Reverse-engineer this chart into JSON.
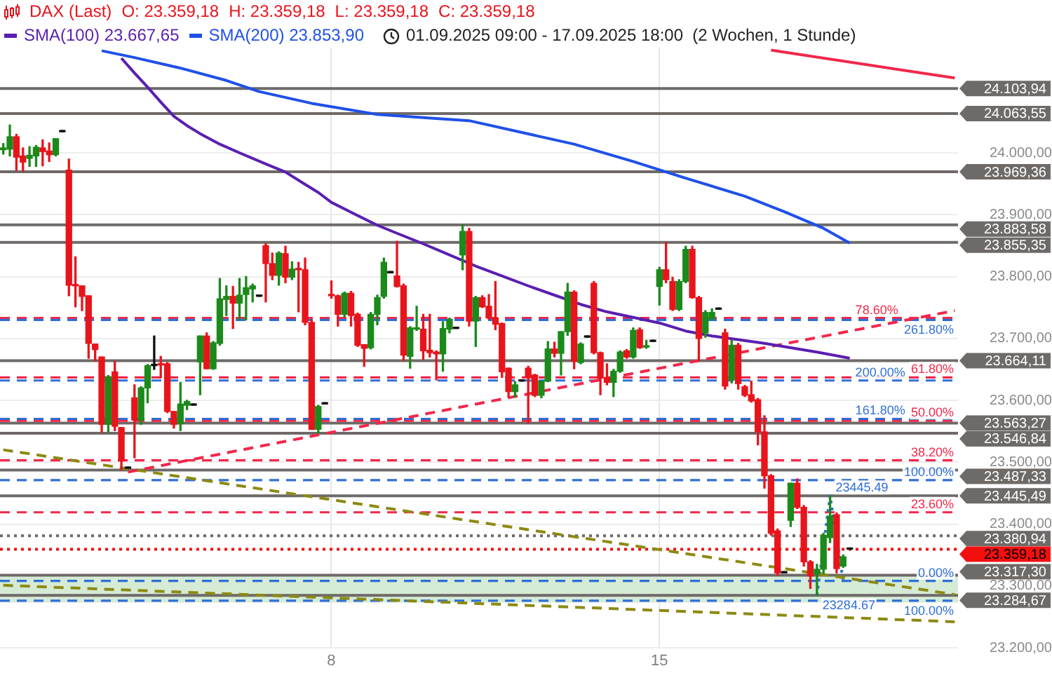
{
  "chart_data": {
    "type": "candlestick",
    "title": "DAX (Last)",
    "subtitle": "01.09.2025 09:00 - 17.09.2025 18:00  (2 Wochen, 1 Stunde)",
    "annotations": [
      "O: 23.359,18",
      "H: 23.359,18",
      "L: 23.359,18",
      "C: 23.359,18",
      {
        "text": "78.60%",
        "y": 23733
      },
      {
        "text": "61.80%",
        "y": 23637
      },
      {
        "text": "50.00%",
        "y": 23567
      },
      {
        "text": "38.20%",
        "y": 23503
      },
      {
        "text": "23.60%",
        "y": 23419
      },
      {
        "text": "261.80%",
        "y": 23730
      },
      {
        "text": "200.00%",
        "y": 23632
      },
      {
        "text": "161.80%",
        "y": 23570
      },
      {
        "text": "100.00%",
        "y": 23471
      },
      {
        "text": "0.00%",
        "y": 23308
      },
      {
        "text": "100.00%",
        "y": 23276
      }
    ],
    "categories": [
      null,
      null,
      null,
      null,
      null,
      null,
      null,
      null,
      null,
      null,
      null,
      null,
      null,
      null,
      null,
      null,
      null,
      null,
      null,
      null,
      null,
      null,
      null,
      null,
      null,
      null,
      null,
      null,
      null,
      null,
      null,
      null,
      null,
      null,
      null,
      null,
      null,
      null,
      null,
      null,
      null,
      null,
      null,
      null,
      null,
      null,
      null,
      null,
      null,
      null,
      "8",
      null,
      null,
      null,
      null,
      null,
      null,
      null,
      null,
      null,
      null,
      null,
      null,
      null,
      null,
      null,
      null,
      null,
      null,
      null,
      null,
      null,
      null,
      null,
      null,
      null,
      null,
      null,
      null,
      null,
      null,
      null,
      null,
      null,
      null,
      null,
      null,
      null,
      null,
      null,
      null,
      null,
      null,
      null,
      null,
      null,
      null,
      null,
      null,
      null,
      "15",
      null,
      null,
      null,
      null,
      null,
      null,
      null,
      null,
      null,
      null,
      null,
      null,
      null,
      null,
      null,
      null,
      null,
      null,
      null,
      null,
      null,
      null,
      null,
      null,
      null,
      null,
      null,
      null,
      null,
      null,
      null,
      null,
      null,
      null,
      null,
      null,
      null,
      null,
      null,
      null,
      null,
      null,
      null,
      null,
      null
    ],
    "ohlc": [
      [
        24005,
        24015,
        23998,
        24008
      ],
      [
        24006,
        24045,
        23995,
        24026
      ],
      [
        24026,
        24030,
        23972,
        23993
      ],
      [
        23995,
        24008,
        23970,
        23985
      ],
      [
        23991,
        24010,
        23978,
        23996
      ],
      [
        23995,
        24012,
        23978,
        24009
      ],
      [
        24008,
        24021,
        23979,
        24002
      ],
      [
        24003,
        24016,
        23986,
        23997
      ],
      [
        23997,
        24023,
        23995,
        24023
      ],
      [
        24034,
        24034,
        24034,
        24034
      ],
      [
        23972,
        23990,
        23769,
        23786
      ],
      [
        23787,
        23832,
        23751,
        23785
      ],
      [
        23785,
        23785,
        23745,
        23768
      ],
      [
        23769,
        23769,
        23668,
        23692
      ],
      [
        23691,
        23691,
        23664,
        23682
      ],
      [
        23670,
        23670,
        23548,
        23561
      ],
      [
        23561,
        23640,
        23549,
        23638
      ],
      [
        23646,
        23663,
        23551,
        23558
      ],
      [
        23556,
        23556,
        23487.33,
        23502
      ],
      [
        23490,
        23490,
        23490,
        23490
      ],
      [
        23604,
        23625,
        23507,
        23568
      ],
      [
        23568,
        23622,
        23561,
        23620
      ],
      [
        23620,
        23658,
        23596,
        23656
      ],
      [
        23656,
        23704,
        23650,
        23656
      ],
      [
        23658,
        23671,
        23637,
        23657
      ],
      [
        23659,
        23661,
        23580,
        23582
      ],
      [
        23582,
        23582,
        23555,
        23561
      ],
      [
        23562,
        23629,
        23551,
        23594
      ],
      [
        23592,
        23600,
        23585,
        23598
      ],
      [
        23592,
        23592,
        23592,
        23592
      ],
      [
        23662,
        23704,
        23609,
        23704
      ],
      [
        23704,
        23709,
        23651,
        23651
      ],
      [
        23651,
        23695,
        23650,
        23693
      ],
      [
        23692,
        23797,
        23689,
        23764
      ],
      [
        23763,
        23785,
        23737,
        23768
      ],
      [
        23768,
        23784,
        23716,
        23757
      ],
      [
        23757,
        23797,
        23730,
        23770
      ],
      [
        23771,
        23800,
        23730,
        23782
      ],
      [
        23780,
        23788,
        23759,
        23785
      ],
      [
        23768,
        23768,
        23768,
        23768
      ],
      [
        23850,
        23853,
        23759,
        23821
      ],
      [
        23821,
        23838,
        23795,
        23802
      ],
      [
        23802,
        23840,
        23786,
        23838
      ],
      [
        23837,
        23849,
        23790,
        23799
      ],
      [
        23799,
        23824,
        23795,
        23812
      ],
      [
        23812,
        23823,
        23743,
        23811
      ],
      [
        23811,
        23830,
        23722,
        23726
      ],
      [
        23726,
        23730,
        23553,
        23553
      ],
      [
        23553,
        23592,
        23546.84,
        23590
      ],
      [
        23594,
        23594,
        23594,
        23594
      ],
      [
        23770,
        23793,
        23765,
        23769
      ],
      [
        23769,
        23770,
        23720,
        23739
      ],
      [
        23739,
        23775,
        23735,
        23773
      ],
      [
        23773,
        23776,
        23720,
        23737
      ],
      [
        23739,
        23741,
        23687,
        23689
      ],
      [
        23690,
        23690,
        23655,
        23684
      ],
      [
        23685,
        23742,
        23683,
        23739
      ],
      [
        23739,
        23770,
        23722,
        23766
      ],
      [
        23768,
        23830,
        23765,
        23823
      ],
      [
        23806,
        23806,
        23806,
        23806
      ],
      [
        23801,
        23857,
        23783,
        23784
      ],
      [
        23785,
        23788,
        23664,
        23673
      ],
      [
        23671,
        23719,
        23652,
        23717
      ],
      [
        23715,
        23752,
        23713,
        23716
      ],
      [
        23715,
        23739,
        23666,
        23680
      ],
      [
        23681,
        23739,
        23670,
        23677
      ],
      [
        23678,
        23680,
        23633,
        23675
      ],
      [
        23675,
        23727,
        23647,
        23716
      ],
      [
        23715,
        23733,
        23709,
        23731
      ],
      [
        23716,
        23716,
        23716,
        23716
      ],
      [
        23835,
        23883.58,
        23811,
        23873
      ],
      [
        23873,
        23878,
        23720,
        23728
      ],
      [
        23728,
        23768,
        23687,
        23766
      ],
      [
        23766,
        23769,
        23750,
        23751
      ],
      [
        23752,
        23771,
        23731,
        23733
      ],
      [
        23733,
        23792,
        23714,
        23723
      ],
      [
        23724,
        23725,
        23637,
        23646
      ],
      [
        23652,
        23652,
        23605,
        23614
      ],
      [
        23614,
        23630,
        23605,
        23625
      ],
      [
        23631,
        23631,
        23631,
        23631
      ],
      [
        23652,
        23655,
        23563.27,
        23638
      ],
      [
        23641,
        23642,
        23606,
        23608
      ],
      [
        23608,
        23631,
        23604,
        23631
      ],
      [
        23631,
        23695,
        23630,
        23683
      ],
      [
        23683,
        23694,
        23670,
        23676
      ],
      [
        23676,
        23711,
        23641,
        23711
      ],
      [
        23711,
        23789,
        23705,
        23775
      ],
      [
        23775,
        23777,
        23651,
        23663
      ],
      [
        23661,
        23693,
        23659,
        23691
      ],
      [
        23702,
        23702,
        23702,
        23702
      ],
      [
        23789,
        23792,
        23675,
        23677
      ],
      [
        23677,
        23678,
        23609,
        23636
      ],
      [
        23637,
        23659,
        23625,
        23629
      ],
      [
        23629,
        23650,
        23606,
        23647
      ],
      [
        23647,
        23680,
        23645,
        23678
      ],
      [
        23680,
        23682,
        23668,
        23670
      ],
      [
        23670,
        23717,
        23668,
        23713
      ],
      [
        23714,
        23717,
        23684,
        23685
      ],
      [
        23686,
        23697,
        23684,
        23687
      ],
      [
        23695,
        23695,
        23695,
        23695
      ],
      [
        23784,
        23815,
        23754,
        23811
      ],
      [
        23811,
        23855.35,
        23790,
        23795
      ],
      [
        23792,
        23799,
        23745,
        23747
      ],
      [
        23747,
        23795,
        23745,
        23792
      ],
      [
        23792,
        23849,
        23790,
        23844
      ],
      [
        23844,
        23849,
        23765,
        23766
      ],
      [
        23766,
        23768,
        23664.11,
        23700
      ],
      [
        23709,
        23745,
        23702,
        23742
      ],
      [
        23732,
        23748,
        23730,
        23742
      ],
      [
        23747,
        23747,
        23747,
        23747
      ],
      [
        23709,
        23715,
        23618,
        23623
      ],
      [
        23633,
        23697,
        23628,
        23689
      ],
      [
        23689,
        23692,
        23618,
        23627
      ],
      [
        23622,
        23624,
        23606,
        23608
      ],
      [
        23609,
        23631,
        23597,
        23599
      ],
      [
        23601,
        23603,
        23528,
        23549
      ],
      [
        23549,
        23575,
        23458,
        23478
      ],
      [
        23478,
        23480,
        23382,
        23385
      ],
      [
        23389,
        23392,
        23317.3,
        23321
      ],
      [
        23321,
        23321,
        23321,
        23321
      ],
      [
        23406,
        23466,
        23396,
        23466
      ],
      [
        23466,
        23473,
        23425,
        23427
      ],
      [
        23427,
        23430,
        23332,
        23339
      ],
      [
        23339,
        23341,
        23296,
        23316
      ],
      [
        23319,
        23335,
        23284.67,
        23327
      ],
      [
        23327,
        23385,
        23320,
        23382
      ],
      [
        23378,
        23445.49,
        23370,
        23413
      ],
      [
        23415,
        23418,
        23321,
        23328
      ],
      [
        23332,
        23350,
        23330,
        23347
      ],
      [
        23359.18,
        23359.18,
        23359.18,
        23359.18
      ],
      null,
      null,
      null,
      null,
      null,
      null,
      null,
      null,
      null,
      null,
      null,
      null,
      null,
      null,
      null,
      null
    ],
    "colors": [
      "#1b8a1b",
      "#1b8a1b",
      "#e8141c",
      "#e8141c",
      "#1b8a1b",
      "#1b8a1b",
      "#e8141c",
      "#e8141c",
      "#1b8a1b",
      "#111111",
      "#e8141c",
      "#e8141c",
      "#e8141c",
      "#e8141c",
      "#e8141c",
      "#e8141c",
      "#1b8a1b",
      "#e8141c",
      "#e8141c",
      "#111111",
      "#e8141c",
      "#1b8a1b",
      "#1b8a1b",
      "#111111",
      "#e8141c",
      "#e8141c",
      "#e8141c",
      "#1b8a1b",
      "#1b8a1b",
      "#111111",
      "#1b8a1b",
      "#e8141c",
      "#1b8a1b",
      "#1b8a1b",
      "#1b8a1b",
      "#e8141c",
      "#1b8a1b",
      "#1b8a1b",
      "#1b8a1b",
      "#111111",
      "#e8141c",
      "#e8141c",
      "#1b8a1b",
      "#e8141c",
      "#1b8a1b",
      "#e8141c",
      "#e8141c",
      "#e8141c",
      "#1b8a1b",
      "#111111",
      "#e8141c",
      "#e8141c",
      "#1b8a1b",
      "#e8141c",
      "#e8141c",
      "#e8141c",
      "#1b8a1b",
      "#1b8a1b",
      "#1b8a1b",
      "#111111",
      "#e8141c",
      "#e8141c",
      "#1b8a1b",
      "#1b8a1b",
      "#e8141c",
      "#e8141c",
      "#e8141c",
      "#1b8a1b",
      "#1b8a1b",
      "#111111",
      "#1b8a1b",
      "#e8141c",
      "#1b8a1b",
      "#e8141c",
      "#e8141c",
      "#e8141c",
      "#e8141c",
      "#e8141c",
      "#1b8a1b",
      "#111111",
      "#e8141c",
      "#e8141c",
      "#1b8a1b",
      "#1b8a1b",
      "#e8141c",
      "#1b8a1b",
      "#1b8a1b",
      "#e8141c",
      "#1b8a1b",
      "#111111",
      "#e8141c",
      "#e8141c",
      "#e8141c",
      "#1b8a1b",
      "#1b8a1b",
      "#e8141c",
      "#1b8a1b",
      "#e8141c",
      "#1b8a1b",
      "#111111",
      "#1b8a1b",
      "#e8141c",
      "#e8141c",
      "#1b8a1b",
      "#1b8a1b",
      "#e8141c",
      "#e8141c",
      "#1b8a1b",
      "#1b8a1b",
      "#111111",
      "#e8141c",
      "#1b8a1b",
      "#e8141c",
      "#e8141c",
      "#e8141c",
      "#e8141c",
      "#e8141c",
      "#e8141c",
      "#e8141c",
      "#111111",
      "#1b8a1b",
      "#e8141c",
      "#e8141c",
      "#e8141c",
      "#1b8a1b",
      "#1b8a1b",
      "#1b8a1b",
      "#e8141c",
      "#1b8a1b",
      "#111111",
      null,
      null,
      null,
      null,
      null,
      null,
      null,
      null,
      null,
      null,
      null,
      null,
      null,
      null,
      null,
      null
    ],
    "series": [
      {
        "type": "line",
        "name": "SMA(100) 23.667,65",
        "color": "#5a1fb0",
        "values": [
          null,
          null,
          null,
          null,
          null,
          null,
          null,
          null,
          null,
          null,
          null,
          null,
          null,
          null,
          null,
          null,
          null,
          null,
          24153,
          null,
          24129,
          null,
          24106,
          null,
          24082,
          null,
          24059,
          null,
          24044,
          null,
          24031,
          null,
          null,
          24014,
          null,
          null,
          24000,
          null,
          null,
          null,
          23982,
          null,
          null,
          23969,
          null,
          null,
          23949,
          null,
          23936,
          null,
          23920,
          null,
          null,
          23904,
          null,
          null,
          null,
          23883,
          null,
          null,
          23870,
          null,
          null,
          null,
          23853,
          null,
          null,
          null,
          23835,
          null,
          null,
          null,
          23817,
          null,
          null,
          null,
          23801,
          null,
          null,
          null,
          23785,
          null,
          null,
          null,
          23770,
          null,
          null,
          null,
          23755,
          null,
          null,
          null,
          23743,
          null,
          null,
          null,
          23734,
          null,
          null,
          null,
          23725,
          null,
          null,
          null,
          23712,
          null,
          null,
          null,
          23704,
          null,
          null,
          null,
          23698,
          null,
          null,
          null,
          23692,
          null,
          null,
          null,
          23685,
          null,
          null,
          null,
          23678,
          null,
          null,
          null,
          null,
          23668,
          null,
          null,
          null,
          null,
          null,
          null,
          null,
          null,
          null,
          null,
          null,
          null,
          null,
          null,
          null,
          null
        ]
      },
      {
        "type": "line",
        "name": "SMA(200) 23.853,90",
        "color": "#1f50e8",
        "values": [
          null,
          null,
          null,
          null,
          null,
          null,
          null,
          null,
          null,
          null,
          null,
          null,
          null,
          null,
          null,
          24165,
          null,
          null,
          null,
          null,
          24154,
          null,
          null,
          null,
          null,
          null,
          null,
          24137,
          null,
          null,
          null,
          null,
          null,
          null,
          24117,
          null,
          null,
          null,
          null,
          24099,
          null,
          null,
          null,
          null,
          null,
          null,
          null,
          24080,
          null,
          null,
          null,
          null,
          null,
          null,
          null,
          null,
          null,
          24062,
          null,
          null,
          null,
          null,
          null,
          null,
          null,
          null,
          null,
          null,
          null,
          null,
          null,
          24052,
          null,
          null,
          null,
          null,
          null,
          null,
          null,
          null,
          null,
          null,
          null,
          null,
          null,
          null,
          null,
          24014,
          null,
          null,
          null,
          null,
          null,
          null,
          null,
          null,
          23986,
          null,
          null,
          null,
          null,
          null,
          null,
          null,
          23959,
          null,
          null,
          null,
          null,
          null,
          null,
          null,
          null,
          23930,
          null,
          null,
          null,
          null,
          null,
          23905,
          null,
          null,
          null,
          null,
          null,
          23878,
          null,
          null,
          null,
          23854,
          null,
          null,
          null,
          null,
          null,
          null,
          null,
          null,
          null,
          null,
          null,
          null,
          null,
          null,
          null,
          null
        ]
      },
      {
        "type": "line",
        "color": "#f2274a",
        "line_style": "dashed",
        "values": [
          null,
          null,
          null,
          null,
          null,
          null,
          null,
          null,
          null,
          null,
          null,
          null,
          null,
          null,
          null,
          null,
          null,
          null,
          null,
          23484,
          null,
          null,
          null,
          null,
          null,
          null,
          null,
          null,
          null,
          null,
          null,
          null,
          null,
          null,
          null,
          null,
          null,
          null,
          null,
          null,
          null,
          null,
          null,
          null,
          null,
          null,
          null,
          null,
          null,
          null,
          null,
          null,
          null,
          null,
          null,
          null,
          null,
          null,
          null,
          null,
          null,
          null,
          null,
          null,
          null,
          null,
          null,
          null,
          null,
          null,
          null,
          null,
          null,
          null,
          null,
          null,
          null,
          null,
          null,
          null,
          null,
          null,
          null,
          null,
          null,
          null,
          null,
          null,
          null,
          null,
          null,
          null,
          null,
          null,
          null,
          null,
          null,
          null,
          null,
          null,
          null,
          null,
          null,
          null,
          null,
          null,
          null,
          null,
          null,
          null,
          null,
          null,
          null,
          null,
          null,
          null,
          null,
          null,
          null,
          null,
          null,
          null,
          null,
          null,
          null,
          null,
          null,
          null,
          null,
          null,
          null,
          null,
          null,
          null,
          null,
          null,
          null,
          null,
          null,
          null,
          null,
          null,
          null,
          null,
          null,
          23745
        ]
      },
      {
        "type": "line",
        "color": "#8c8a12",
        "line_style": "dashed",
        "values": [
          23520,
          null,
          null,
          null,
          null,
          null,
          null,
          null,
          null,
          null,
          null,
          null,
          null,
          null,
          null,
          null,
          null,
          null,
          null,
          null,
          null,
          null,
          null,
          null,
          null,
          null,
          null,
          null,
          null,
          null,
          null,
          null,
          null,
          null,
          null,
          null,
          null,
          null,
          null,
          null,
          null,
          null,
          null,
          null,
          null,
          null,
          null,
          null,
          null,
          null,
          null,
          null,
          null,
          null,
          null,
          null,
          null,
          null,
          null,
          null,
          null,
          null,
          null,
          null,
          null,
          null,
          null,
          null,
          null,
          null,
          null,
          null,
          null,
          null,
          null,
          null,
          null,
          null,
          null,
          null,
          null,
          null,
          null,
          null,
          null,
          null,
          null,
          null,
          null,
          null,
          null,
          null,
          null,
          null,
          null,
          null,
          null,
          null,
          null,
          null,
          null,
          null,
          null,
          null,
          null,
          null,
          null,
          null,
          null,
          null,
          null,
          null,
          null,
          null,
          null,
          null,
          null,
          null,
          null,
          null,
          null,
          null,
          null,
          null,
          null,
          null,
          null,
          null,
          null,
          null,
          null,
          null,
          null,
          null,
          null,
          null,
          null,
          null,
          null,
          null,
          null,
          null,
          null,
          null,
          null,
          23286
        ]
      },
      {
        "type": "line",
        "color": "#8c8a12",
        "line_style": "dashed",
        "values": [
          23301,
          null,
          null,
          null,
          null,
          null,
          null,
          null,
          null,
          null,
          null,
          null,
          null,
          null,
          null,
          null,
          null,
          null,
          null,
          null,
          null,
          null,
          null,
          null,
          null,
          null,
          null,
          null,
          null,
          null,
          null,
          null,
          null,
          null,
          null,
          null,
          null,
          null,
          null,
          null,
          null,
          null,
          null,
          null,
          null,
          null,
          null,
          null,
          null,
          null,
          null,
          null,
          null,
          null,
          null,
          null,
          null,
          null,
          null,
          null,
          null,
          null,
          null,
          null,
          null,
          null,
          null,
          null,
          null,
          null,
          null,
          null,
          null,
          null,
          null,
          null,
          null,
          null,
          null,
          null,
          null,
          null,
          null,
          null,
          null,
          null,
          null,
          null,
          null,
          null,
          null,
          null,
          null,
          null,
          null,
          null,
          null,
          null,
          null,
          null,
          null,
          null,
          null,
          null,
          null,
          null,
          null,
          null,
          null,
          null,
          null,
          null,
          null,
          null,
          null,
          null,
          null,
          null,
          null,
          null,
          null,
          null,
          null,
          null,
          null,
          null,
          null,
          null,
          null,
          null,
          null,
          null,
          null,
          null,
          null,
          null,
          null,
          null,
          null,
          null,
          null,
          null,
          null,
          null,
          null,
          23242
        ]
      },
      {
        "type": "line",
        "color": "#f2274a",
        "values": [
          null,
          null,
          null,
          null,
          null,
          null,
          null,
          null,
          null,
          null,
          null,
          null,
          null,
          null,
          null,
          null,
          null,
          null,
          null,
          null,
          null,
          null,
          null,
          null,
          null,
          null,
          null,
          null,
          null,
          null,
          null,
          null,
          null,
          null,
          null,
          null,
          null,
          null,
          null,
          null,
          null,
          null,
          null,
          null,
          null,
          null,
          null,
          null,
          null,
          null,
          null,
          null,
          null,
          null,
          null,
          null,
          null,
          null,
          null,
          null,
          null,
          null,
          null,
          null,
          null,
          null,
          null,
          null,
          null,
          null,
          null,
          null,
          null,
          null,
          null,
          null,
          null,
          null,
          null,
          null,
          null,
          null,
          null,
          null,
          null,
          null,
          null,
          null,
          null,
          null,
          null,
          null,
          null,
          null,
          null,
          null,
          null,
          null,
          null,
          null,
          null,
          null,
          null,
          null,
          null,
          null,
          null,
          null,
          null,
          null,
          null,
          null,
          null,
          null,
          null,
          null,
          null,
          24166,
          null,
          null,
          null,
          null,
          null,
          null,
          null,
          null,
          null,
          null,
          null,
          null,
          null,
          null,
          null,
          null,
          null,
          null,
          null,
          null,
          null,
          null,
          null,
          null,
          null,
          null,
          null,
          24121
        ]
      },
      {
        "type": "line",
        "color": "#2f6fd6",
        "line_style": "dotted",
        "values": [
          null,
          null,
          null,
          null,
          null,
          null,
          null,
          null,
          null,
          null,
          null,
          null,
          null,
          null,
          null,
          null,
          null,
          null,
          null,
          null,
          null,
          null,
          null,
          null,
          null,
          null,
          null,
          null,
          null,
          null,
          null,
          null,
          null,
          null,
          null,
          null,
          null,
          null,
          null,
          null,
          null,
          null,
          null,
          null,
          null,
          null,
          null,
          null,
          null,
          null,
          null,
          null,
          null,
          null,
          null,
          null,
          null,
          null,
          null,
          null,
          null,
          null,
          null,
          null,
          null,
          null,
          null,
          null,
          null,
          null,
          null,
          null,
          null,
          null,
          null,
          null,
          null,
          null,
          null,
          null,
          null,
          null,
          null,
          null,
          null,
          null,
          null,
          null,
          null,
          null,
          null,
          null,
          null,
          null,
          null,
          null,
          null,
          null,
          null,
          null,
          null,
          null,
          null,
          null,
          null,
          null,
          null,
          null,
          null,
          null,
          null,
          null,
          null,
          null,
          null,
          null,
          null,
          null,
          null,
          null,
          null,
          null,
          null,
          null,
          23284.67,
          null,
          23445.49,
          null,
          23308,
          null,
          null,
          null,
          null,
          null,
          null,
          null,
          null,
          null,
          null,
          null,
          null,
          null,
          null,
          null,
          null,
          null
        ],
        "value_labels": [
          null,
          null,
          null,
          null,
          null,
          null,
          null,
          null,
          null,
          null,
          null,
          null,
          null,
          null,
          null,
          null,
          null,
          null,
          null,
          null,
          null,
          null,
          null,
          null,
          null,
          null,
          null,
          null,
          null,
          null,
          null,
          null,
          null,
          null,
          null,
          null,
          null,
          null,
          null,
          null,
          null,
          null,
          null,
          null,
          null,
          null,
          null,
          null,
          null,
          null,
          null,
          null,
          null,
          null,
          null,
          null,
          null,
          null,
          null,
          null,
          null,
          null,
          null,
          null,
          null,
          null,
          null,
          null,
          null,
          null,
          null,
          null,
          null,
          null,
          null,
          null,
          null,
          null,
          null,
          null,
          null,
          null,
          null,
          null,
          null,
          null,
          null,
          null,
          null,
          null,
          null,
          null,
          null,
          null,
          null,
          null,
          null,
          null,
          null,
          null,
          null,
          null,
          null,
          null,
          null,
          null,
          null,
          null,
          null,
          null,
          null,
          null,
          null,
          null,
          null,
          null,
          null,
          null,
          null,
          null,
          null,
          null,
          null,
          null,
          "23284.67",
          null,
          "23445.49",
          null,
          null,
          null,
          null,
          null,
          null,
          null,
          null,
          null,
          null,
          null,
          null,
          null,
          null,
          null,
          null,
          null,
          null,
          null
        ]
      }
    ],
    "ylim": [
      23200,
      24170
    ],
    "yticks": [
      {
        "value": 23200,
        "label": "23.200,00"
      },
      {
        "value": 23300,
        "label": "23.300,00"
      },
      {
        "value": 23400,
        "label": "23.400,00"
      },
      {
        "value": 23500,
        "label": "23.500,00"
      },
      {
        "value": 23600,
        "label": "23.600,00"
      },
      {
        "value": 23700,
        "label": "23.700,00"
      },
      {
        "value": 23800,
        "label": "23.800,00"
      },
      {
        "value": 23900,
        "label": "23.900,00"
      },
      {
        "value": 24000,
        "label": "24.000,00"
      }
    ],
    "ref_lines": [
      {
        "axis": "y",
        "value": 24103.94,
        "label": "24.103,94",
        "color": "#6e6a68",
        "line_style": "solid"
      },
      {
        "axis": "y",
        "value": 24063.55,
        "label": "24.063,55",
        "color": "#6e6a68",
        "line_style": "solid"
      },
      {
        "axis": "y",
        "value": 23969.36,
        "label": "23.969,36",
        "color": "#6e6a68",
        "line_style": "solid"
      },
      {
        "axis": "y",
        "value": 23883.58,
        "label": "23.883,58",
        "color": "#6e6a68",
        "line_style": "solid"
      },
      {
        "axis": "y",
        "value": 23855.35,
        "label": "23.855,35",
        "color": "#6e6a68",
        "line_style": "solid"
      },
      {
        "axis": "y",
        "value": 23664.11,
        "label": "23.664,11",
        "color": "#6e6a68",
        "line_style": "solid"
      },
      {
        "axis": "y",
        "value": 23563.27,
        "label": "23.563,27",
        "color": "#6e6a68",
        "line_style": "solid"
      },
      {
        "axis": "y",
        "value": 23546.84,
        "label": "23.546,84",
        "color": "#6e6a68",
        "line_style": "solid"
      },
      {
        "axis": "y",
        "value": 23487.33,
        "label": "23.487,33",
        "color": "#6e6a68",
        "line_style": "solid"
      },
      {
        "axis": "y",
        "value": 23445.49,
        "label": "23.445,49",
        "color": "#6e6a68",
        "line_style": "solid"
      },
      {
        "axis": "y",
        "value": 23380.94,
        "label": "23.380,94",
        "color": "#6e6a68",
        "line_style": "dotted"
      },
      {
        "axis": "y",
        "value": 23359.18,
        "label": "23.359,18",
        "color": "#f40f0f",
        "line_style": "dotted"
      },
      {
        "axis": "y",
        "value": 23317.3,
        "label": "23.317,30",
        "color": "#6e6a68",
        "line_style": "solid"
      },
      {
        "axis": "y",
        "value": 23284.67,
        "label": "23.284,67",
        "color": "#6e6a68",
        "line_style": "solid"
      },
      {
        "axis": "y",
        "value": 23733,
        "color": "#f2274a",
        "line_style": "dashed"
      },
      {
        "axis": "y",
        "value": 23637,
        "color": "#f2274a",
        "line_style": "dashed"
      },
      {
        "axis": "y",
        "value": 23567,
        "color": "#f2274a",
        "line_style": "dashed"
      },
      {
        "axis": "y",
        "value": 23503,
        "color": "#f2274a",
        "line_style": "dashed"
      },
      {
        "axis": "y",
        "value": 23419,
        "color": "#f2274a",
        "line_style": "dashed"
      },
      {
        "axis": "y",
        "value": 23730,
        "color": "#2f6fd6",
        "line_style": "dashed"
      },
      {
        "axis": "y",
        "value": 23632,
        "color": "#2f6fd6",
        "line_style": "dashed"
      },
      {
        "axis": "y",
        "value": 23570,
        "color": "#2f6fd6",
        "line_style": "dashed"
      },
      {
        "axis": "y",
        "value": 23471,
        "color": "#2f6fd6",
        "line_style": "dashed"
      },
      {
        "axis": "y",
        "value": 23308,
        "color": "#2f6fd6",
        "line_style": "dashed"
      },
      {
        "axis": "y",
        "value": 23276,
        "color": "#2f6fd6",
        "line_style": "dashed"
      }
    ],
    "bands": [
      {
        "axis": "y",
        "from": 23273,
        "to": 23317,
        "color": "#d5ebd5"
      }
    ],
    "grid": true,
    "legend": "top left",
    "marker": "none"
  }
}
